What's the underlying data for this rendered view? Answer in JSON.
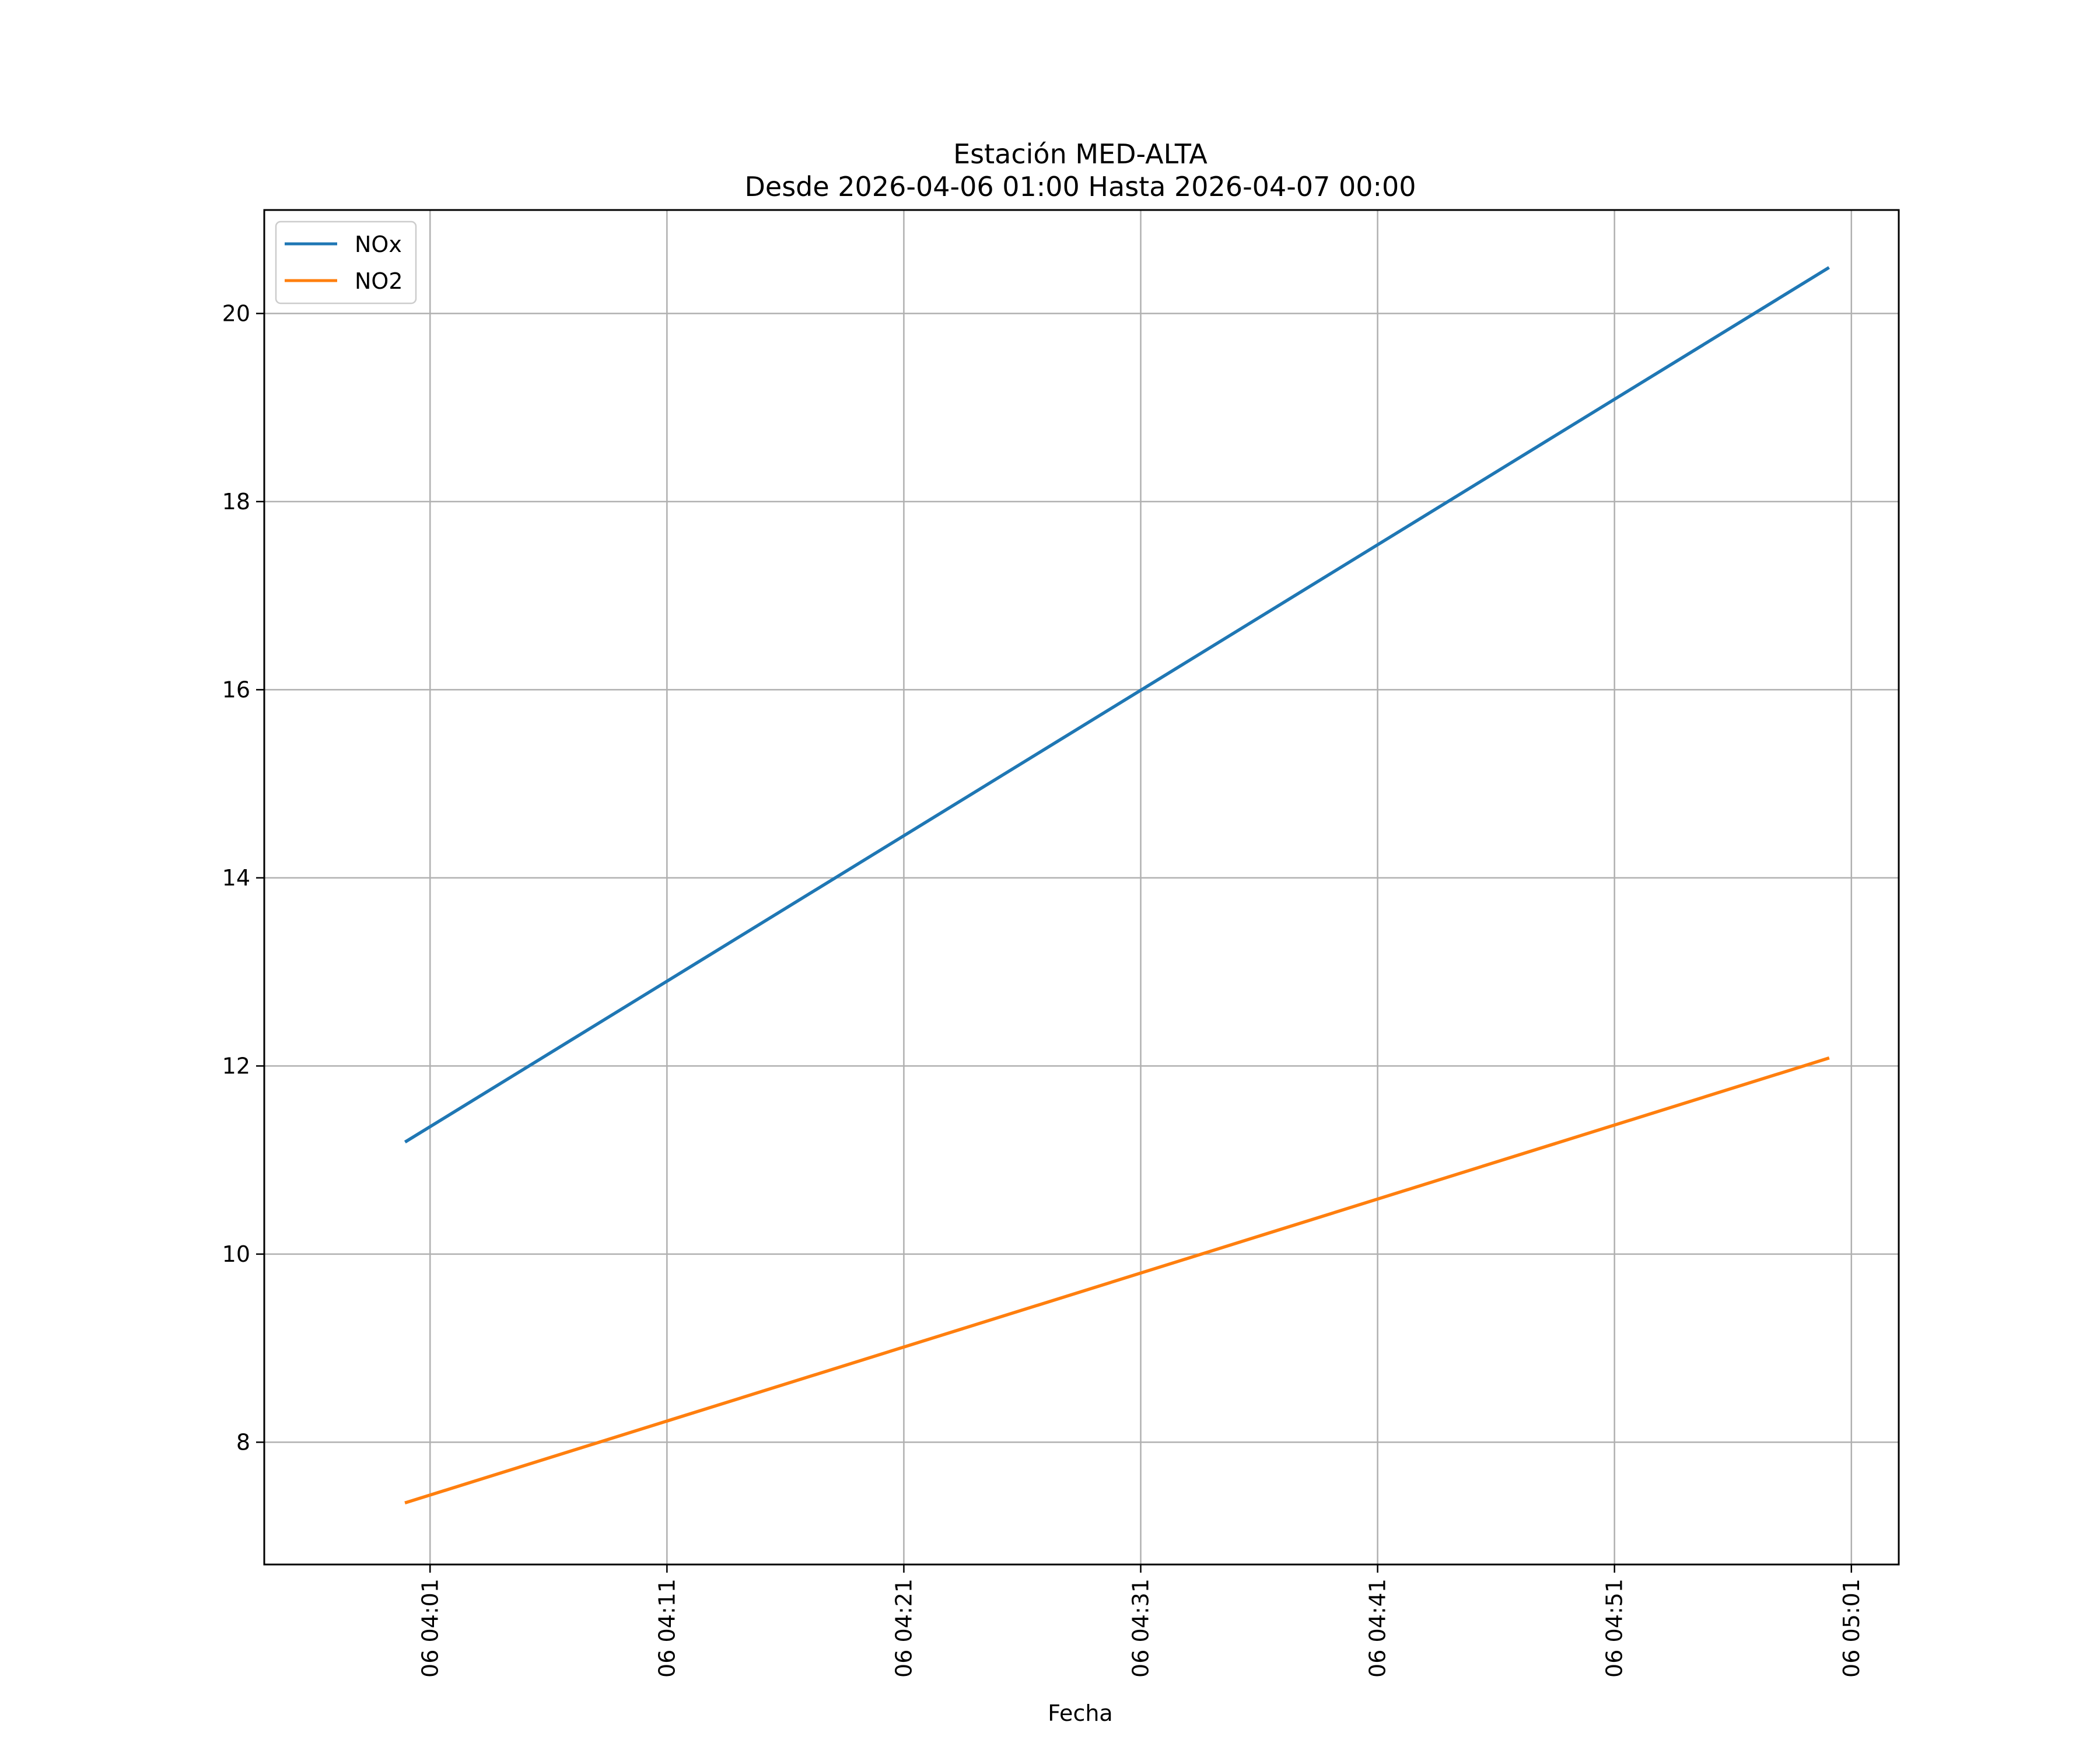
{
  "chart_data": {
    "type": "line",
    "title": "Estación MED-ALTA",
    "subtitle": "Desde 2026-04-06 01:00 Hasta 2026-04-07 00:00",
    "xlabel": "Fecha",
    "ylabel": "",
    "x_tick_labels": [
      "06 04:01",
      "06 04:11",
      "06 04:21",
      "06 04:31",
      "06 04:41",
      "06 04:51",
      "06 05:01"
    ],
    "x_ticks": [
      "2026-04-06 04:01",
      "2026-04-06 04:11",
      "2026-04-06 04:21",
      "2026-04-06 04:31",
      "2026-04-06 04:41",
      "2026-04-06 04:51",
      "2026-04-06 05:01"
    ],
    "x_range": [
      "2026-04-06 03:54",
      "2026-04-06 05:03"
    ],
    "y_ticks": [
      8,
      10,
      12,
      14,
      16,
      18,
      20
    ],
    "ylim": [
      6.7,
      21.1
    ],
    "grid": true,
    "legend_position": "upper-left",
    "series": [
      {
        "name": "NOx",
        "color": "#1f77b4",
        "x": [
          "2026-04-06 04:00",
          "2026-04-06 05:00"
        ],
        "y": [
          11.2,
          20.48
        ]
      },
      {
        "name": "NO2",
        "color": "#ff7f0e",
        "x": [
          "2026-04-06 04:00",
          "2026-04-06 05:00"
        ],
        "y": [
          7.36,
          12.08
        ]
      }
    ]
  }
}
